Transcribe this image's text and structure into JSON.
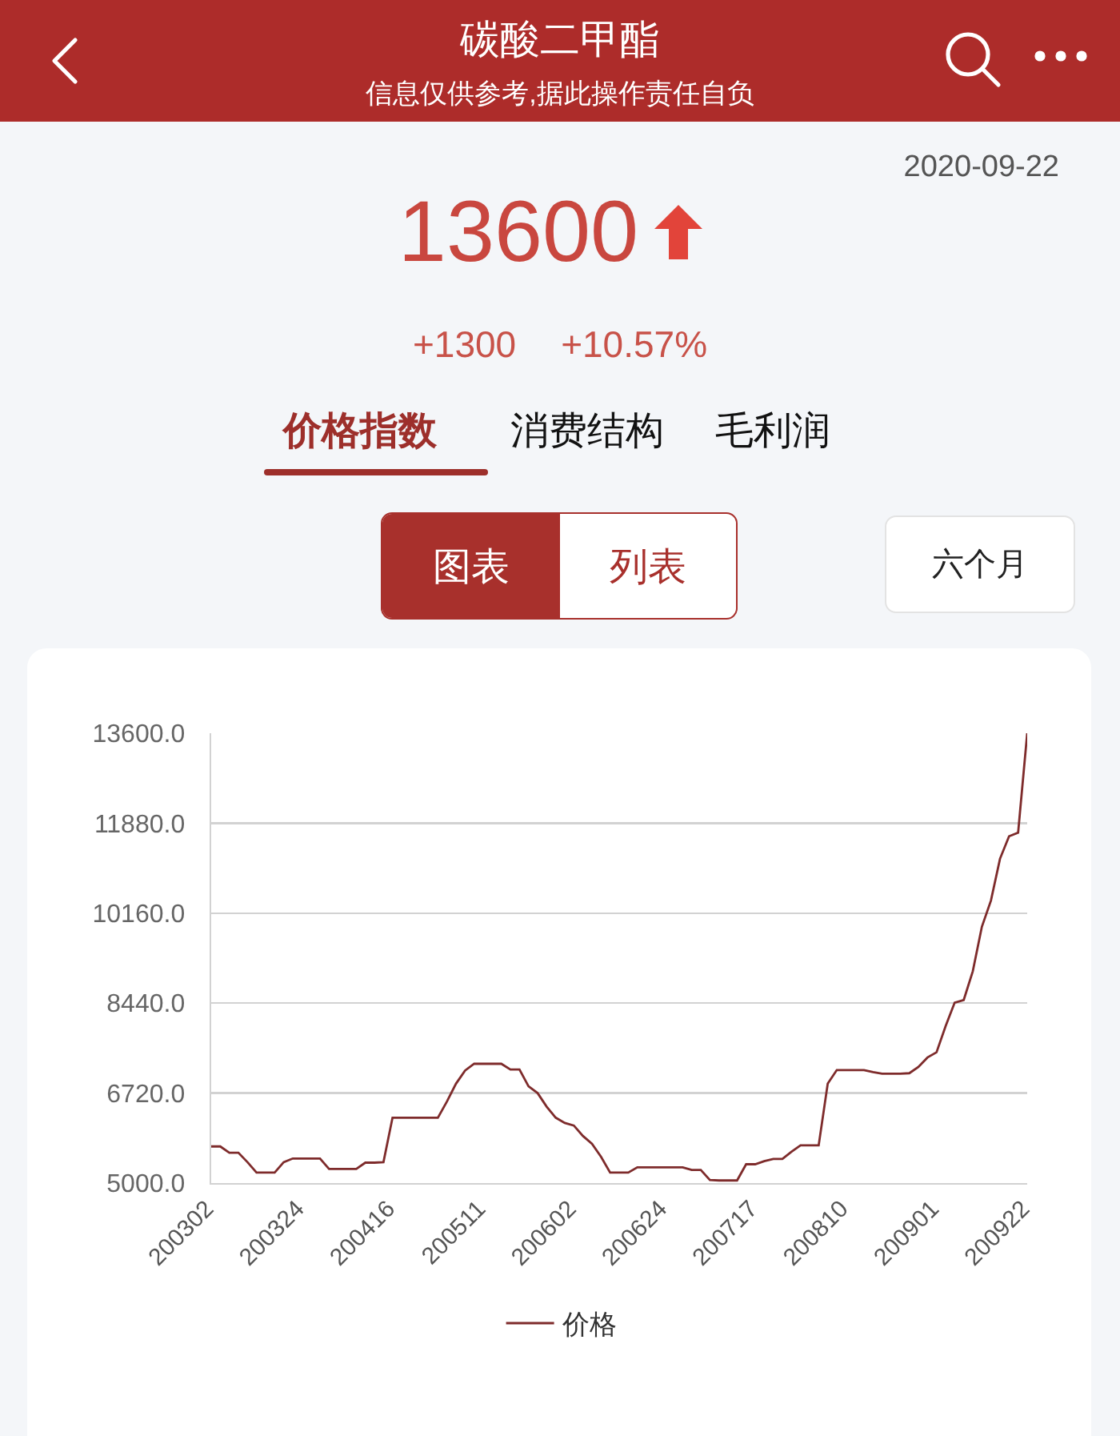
{
  "chart_data": {
    "type": "line",
    "title": "碳酸二甲酯",
    "subtitle": "信息仅供参考,据此操作责任自负",
    "annotations": [
      "2020-09-22",
      "13600",
      "+1300",
      "+10.57%",
      "价格指数",
      "消费结构",
      "毛利润",
      "图表",
      "列表",
      "六个月"
    ],
    "categories": [
      "200302",
      null,
      null,
      null,
      null,
      null,
      null,
      null,
      null,
      null,
      "200324",
      null,
      null,
      null,
      null,
      null,
      null,
      null,
      null,
      null,
      "200416",
      null,
      null,
      null,
      null,
      null,
      null,
      null,
      null,
      null,
      "200511",
      null,
      null,
      null,
      null,
      null,
      null,
      null,
      null,
      null,
      "200602",
      null,
      null,
      null,
      null,
      null,
      null,
      null,
      null,
      null,
      "200624",
      null,
      null,
      null,
      null,
      null,
      null,
      null,
      null,
      null,
      "200717",
      null,
      null,
      null,
      null,
      null,
      null,
      null,
      null,
      null,
      "200810",
      null,
      null,
      null,
      null,
      null,
      null,
      null,
      null,
      null,
      "200901",
      null,
      null,
      null,
      null,
      null,
      null,
      null,
      null,
      null,
      "200922"
    ],
    "series": [
      {
        "name": "价格",
        "color": "#7e2b2b",
        "values": [
          5700,
          5700,
          5580,
          5580,
          5400,
          5200,
          5200,
          5200,
          5400,
          5470,
          5470,
          5470,
          5470,
          5270,
          5270,
          5270,
          5270,
          5390,
          5390,
          5400,
          6250,
          6250,
          6250,
          6250,
          6250,
          6250,
          6560,
          6900,
          7150,
          7280,
          7280,
          7280,
          7280,
          7170,
          7170,
          6850,
          6720,
          6460,
          6250,
          6150,
          6100,
          5900,
          5750,
          5500,
          5200,
          5200,
          5200,
          5300,
          5300,
          5300,
          5300,
          5300,
          5300,
          5250,
          5250,
          5060,
          5050,
          5050,
          5050,
          5360,
          5360,
          5420,
          5460,
          5460,
          5600,
          5720,
          5720,
          5720,
          6900,
          7160,
          7160,
          7160,
          7160,
          7120,
          7090,
          7090,
          7090,
          7100,
          7220,
          7400,
          7500,
          8000,
          8450,
          8500,
          9050,
          9900,
          10400,
          11200,
          11630,
          11700,
          13600
        ]
      }
    ],
    "ylim": [
      5000,
      13600
    ],
    "yticks": [
      {
        "value": 5000,
        "label": "5000.0"
      },
      {
        "value": 6720,
        "label": "6720.0"
      },
      {
        "value": 8440,
        "label": "8440.0"
      },
      {
        "value": 10160,
        "label": "10160.0"
      },
      {
        "value": 11880,
        "label": "11880.0"
      },
      {
        "value": 13600,
        "label": "13600.0"
      }
    ],
    "grid": "y",
    "legend": "bottom"
  }
}
